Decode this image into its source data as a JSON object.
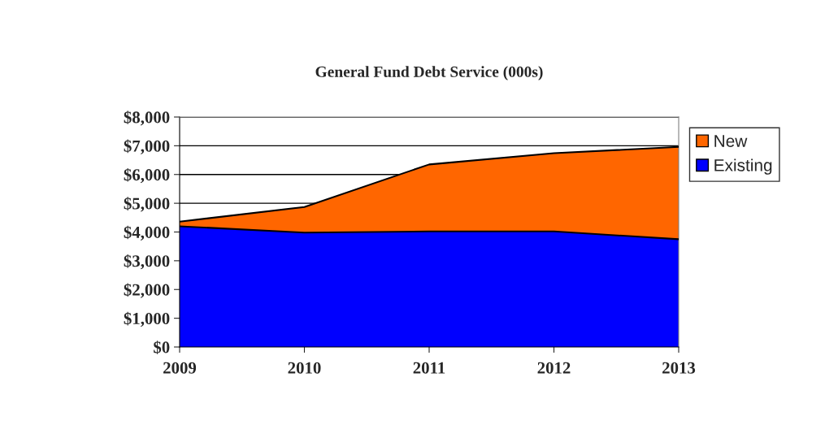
{
  "chart_data": {
    "type": "area",
    "title": "General Fund Debt Service (000s)",
    "stacked": true,
    "categories": [
      "2009",
      "2010",
      "2011",
      "2012",
      "2013"
    ],
    "series": [
      {
        "name": "Existing",
        "color": "#0000ff",
        "values": [
          4200,
          3980,
          4020,
          4020,
          3750
        ]
      },
      {
        "name": "New",
        "color": "#ff6600",
        "values": [
          160,
          890,
          2330,
          2720,
          3210
        ]
      }
    ],
    "ylim": [
      0,
      8000
    ],
    "yticks": [
      {
        "value": 0,
        "label": "$0"
      },
      {
        "value": 1000,
        "label": "$1,000"
      },
      {
        "value": 2000,
        "label": "$2,000"
      },
      {
        "value": 3000,
        "label": "$3,000"
      },
      {
        "value": 4000,
        "label": "$4,000"
      },
      {
        "value": 5000,
        "label": "$5,000"
      },
      {
        "value": 6000,
        "label": "$6,000"
      },
      {
        "value": 7000,
        "label": "$7,000"
      },
      {
        "value": 8000,
        "label": "$8,000"
      }
    ],
    "grid": "y",
    "legend": "right"
  }
}
